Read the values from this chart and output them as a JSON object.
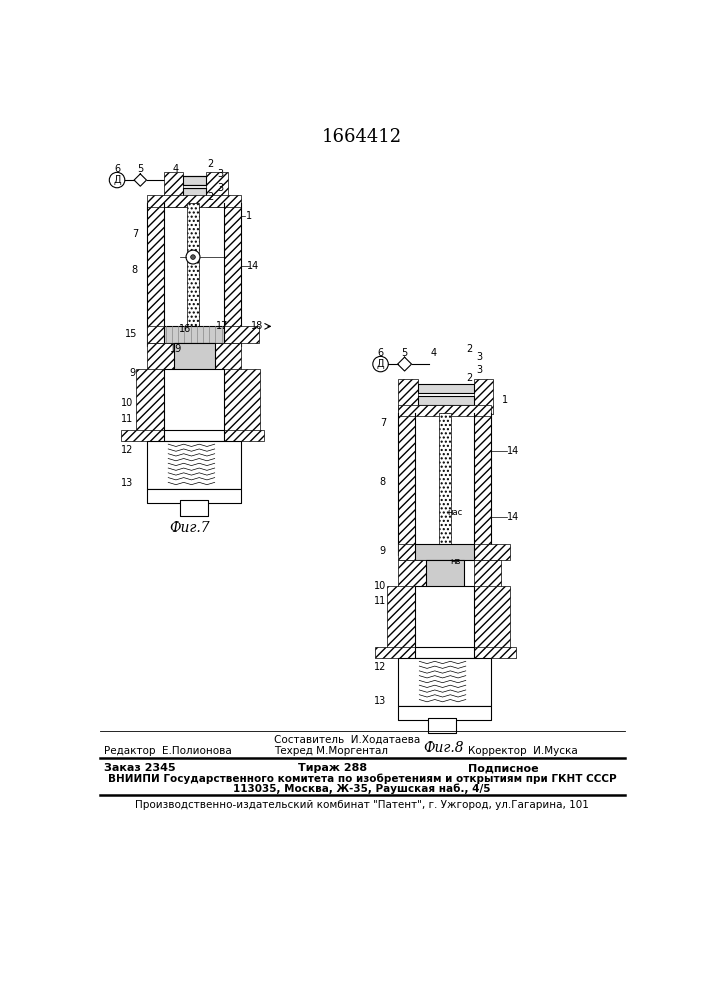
{
  "patent_number": "1664412",
  "fig1_label": "Фиг.7",
  "fig2_label": "Фиг.8",
  "editor_label": "Редактор",
  "editor_name": "Е.Полионова",
  "composer_label": "Составитель",
  "composer_name": "И.Ходатаева",
  "techred_label": "Техред",
  "techred_name": "М.Моргентал",
  "corrector_label": "Корректор",
  "corrector_name": "И.Муска",
  "order_label": "Заказ",
  "order_number": "2345",
  "tirazh_label": "Тираж",
  "tirazh_number": "288",
  "podpisnoe_label": "Подписное",
  "vniipи_line1": "ВНИИПИ Государственного комитета по изобретениям и открытиям при ГКНТ СССР",
  "vniipи_line2": "113035, Москва, Ж-35, Раушская наб., 4/5",
  "patent_line": "Производственно-издательский комбинат \"Патент\", г. Ужгород, ул.Гагарина, 101",
  "bg_color": "#ffffff",
  "line_color": "#000000"
}
